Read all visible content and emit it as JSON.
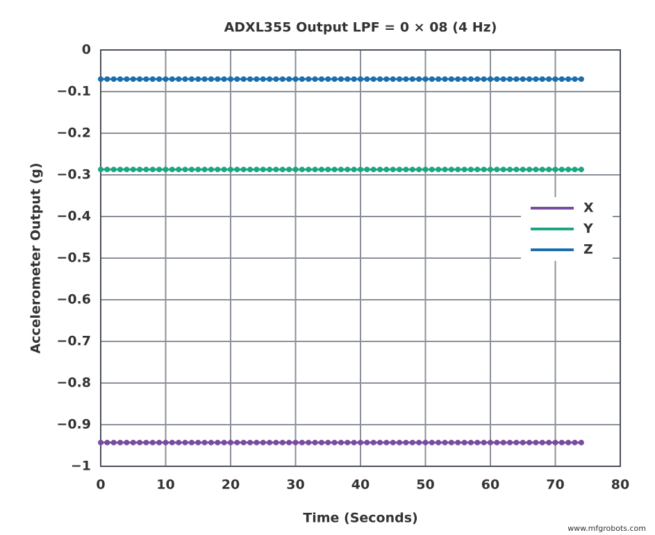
{
  "chart_data": {
    "type": "line",
    "title": "ADXL355 Output LPF = 0 × 08 (4 Hz)",
    "x_label": "Time (Seconds)",
    "y_label": "Accelerometer Output (g)",
    "watermark": "www.mfgrobots.com",
    "x": [
      0,
      1,
      2,
      3,
      4,
      5,
      6,
      7,
      8,
      9,
      10,
      11,
      12,
      13,
      14,
      15,
      16,
      17,
      18,
      19,
      20,
      21,
      22,
      23,
      24,
      25,
      26,
      27,
      28,
      29,
      30,
      31,
      32,
      33,
      34,
      35,
      36,
      37,
      38,
      39,
      40,
      41,
      42,
      43,
      44,
      45,
      46,
      47,
      48,
      49,
      50,
      51,
      52,
      53,
      54,
      55,
      56,
      57,
      58,
      59,
      60,
      61,
      62,
      63,
      64,
      65,
      66,
      67,
      68,
      69,
      70,
      71,
      72,
      73,
      74
    ],
    "series": [
      {
        "name": "X",
        "color": "#7a4c9f",
        "values": [
          -0.943,
          -0.943,
          -0.943,
          -0.943,
          -0.943,
          -0.943,
          -0.943,
          -0.943,
          -0.943,
          -0.943,
          -0.943,
          -0.943,
          -0.943,
          -0.943,
          -0.943,
          -0.943,
          -0.943,
          -0.943,
          -0.943,
          -0.943,
          -0.943,
          -0.943,
          -0.943,
          -0.943,
          -0.943,
          -0.943,
          -0.943,
          -0.943,
          -0.943,
          -0.943,
          -0.943,
          -0.943,
          -0.943,
          -0.943,
          -0.943,
          -0.943,
          -0.943,
          -0.943,
          -0.943,
          -0.943,
          -0.943,
          -0.943,
          -0.943,
          -0.943,
          -0.943,
          -0.943,
          -0.943,
          -0.943,
          -0.943,
          -0.943,
          -0.943,
          -0.943,
          -0.943,
          -0.943,
          -0.943,
          -0.943,
          -0.943,
          -0.943,
          -0.943,
          -0.943,
          -0.943,
          -0.943,
          -0.943,
          -0.943,
          -0.943,
          -0.943,
          -0.943,
          -0.943,
          -0.943,
          -0.943,
          -0.943,
          -0.943,
          -0.943,
          -0.943,
          -0.943
        ]
      },
      {
        "name": "Y",
        "color": "#1aa682",
        "values": [
          -0.287,
          -0.287,
          -0.287,
          -0.287,
          -0.287,
          -0.287,
          -0.287,
          -0.287,
          -0.287,
          -0.287,
          -0.287,
          -0.287,
          -0.287,
          -0.287,
          -0.287,
          -0.287,
          -0.287,
          -0.287,
          -0.287,
          -0.287,
          -0.287,
          -0.287,
          -0.287,
          -0.287,
          -0.287,
          -0.287,
          -0.287,
          -0.287,
          -0.287,
          -0.287,
          -0.287,
          -0.287,
          -0.287,
          -0.287,
          -0.287,
          -0.287,
          -0.287,
          -0.287,
          -0.287,
          -0.287,
          -0.287,
          -0.287,
          -0.287,
          -0.287,
          -0.287,
          -0.287,
          -0.287,
          -0.287,
          -0.287,
          -0.287,
          -0.287,
          -0.287,
          -0.287,
          -0.287,
          -0.287,
          -0.287,
          -0.287,
          -0.287,
          -0.287,
          -0.287,
          -0.287,
          -0.287,
          -0.287,
          -0.287,
          -0.287,
          -0.287,
          -0.287,
          -0.287,
          -0.287,
          -0.287,
          -0.287,
          -0.287,
          -0.287,
          -0.287,
          -0.287
        ]
      },
      {
        "name": "Z",
        "color": "#1a6eac",
        "values": [
          -0.07,
          -0.07,
          -0.07,
          -0.07,
          -0.07,
          -0.07,
          -0.07,
          -0.07,
          -0.07,
          -0.07,
          -0.07,
          -0.07,
          -0.07,
          -0.07,
          -0.07,
          -0.07,
          -0.07,
          -0.07,
          -0.07,
          -0.07,
          -0.07,
          -0.07,
          -0.07,
          -0.07,
          -0.07,
          -0.07,
          -0.07,
          -0.07,
          -0.07,
          -0.07,
          -0.07,
          -0.07,
          -0.07,
          -0.07,
          -0.07,
          -0.07,
          -0.07,
          -0.07,
          -0.07,
          -0.07,
          -0.07,
          -0.07,
          -0.07,
          -0.07,
          -0.07,
          -0.07,
          -0.07,
          -0.07,
          -0.07,
          -0.07,
          -0.07,
          -0.07,
          -0.07,
          -0.07,
          -0.07,
          -0.07,
          -0.07,
          -0.07,
          -0.07,
          -0.07,
          -0.07,
          -0.07,
          -0.07,
          -0.07,
          -0.07,
          -0.07,
          -0.07,
          -0.07,
          -0.07,
          -0.07,
          -0.07,
          -0.07,
          -0.07,
          -0.07,
          -0.07
        ]
      }
    ],
    "xlim": [
      0,
      80
    ],
    "xticks": [
      0,
      10,
      20,
      30,
      40,
      50,
      60,
      70,
      80
    ],
    "ylim": [
      -1,
      0
    ],
    "yticks": [
      0,
      {
        "value": -0.1,
        "label": "−0.1"
      },
      {
        "value": -0.2,
        "label": "−0.2"
      },
      {
        "value": -0.3,
        "label": "−0.3"
      },
      {
        "value": -0.4,
        "label": "−0.4"
      },
      {
        "value": -0.5,
        "label": "−0.5"
      },
      {
        "value": -0.6,
        "label": "−0.6"
      },
      {
        "value": -0.7,
        "label": "−0.7"
      },
      {
        "value": -0.8,
        "label": "−0.8"
      },
      {
        "value": -0.9,
        "label": "−0.9"
      },
      {
        "value": -1,
        "label": "−1"
      }
    ],
    "grid": true,
    "legend": "right"
  }
}
